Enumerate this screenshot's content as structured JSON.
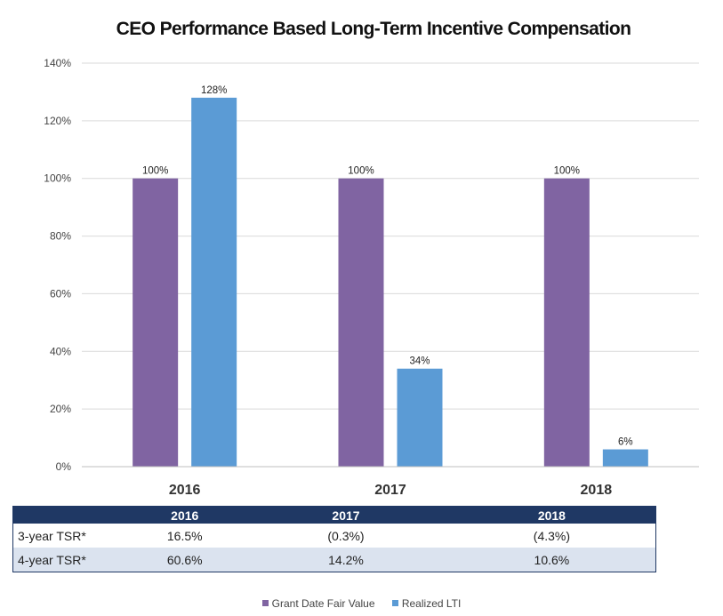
{
  "chart_data": {
    "type": "bar",
    "title": "CEO Performance Based Long-Term Incentive Compensation",
    "categories": [
      "2016",
      "2017",
      "2018"
    ],
    "series": [
      {
        "name": "Grant Date Fair Value",
        "values": [
          100,
          100,
          100
        ],
        "labels": [
          "100%",
          "100%",
          "100%"
        ],
        "color": "#8064a2"
      },
      {
        "name": "Realized LTI",
        "values": [
          128,
          34,
          6
        ],
        "labels": [
          "128%",
          "34%",
          "6%"
        ],
        "color": "#5b9bd5"
      }
    ],
    "ylim": [
      0,
      140
    ],
    "yticks": [
      0,
      20,
      40,
      60,
      80,
      100,
      120,
      140
    ],
    "ytick_labels": [
      "0%",
      "20%",
      "40%",
      "60%",
      "80%",
      "100%",
      "120%",
      "140%"
    ],
    "xlabel": "",
    "ylabel": "",
    "grid": true,
    "legend_position": "bottom"
  },
  "table": {
    "headers": [
      "",
      "2016",
      "2017",
      "2018"
    ],
    "rows": [
      {
        "label": "3-year TSR*",
        "values": [
          "16.5%",
          "(0.3%)",
          "(4.3%)"
        ]
      },
      {
        "label": "4-year TSR*",
        "values": [
          "60.6%",
          "14.2%",
          "10.6%"
        ]
      }
    ]
  },
  "colors": {
    "grid": "#d9d9d9",
    "table_header": "#1f3864",
    "table_alt_row": "#dbe3ef"
  }
}
